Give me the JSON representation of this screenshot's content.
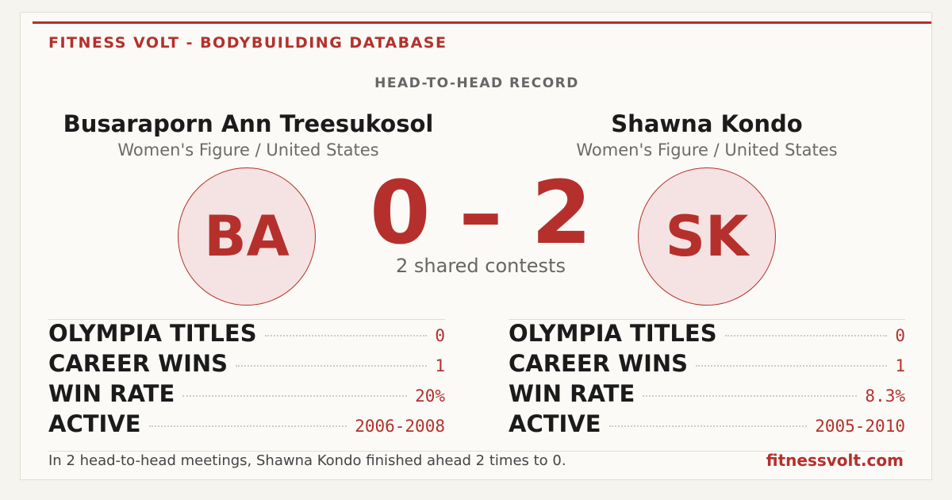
{
  "header": {
    "brand": "FITNESS VOLT - BODYBUILDING DATABASE",
    "subtitle": "HEAD-TO-HEAD RECORD"
  },
  "athletes": [
    {
      "name": "Busaraporn Ann Treesukosol",
      "division": "Women's Figure / United States",
      "initials": "BA",
      "stats": [
        {
          "label": "OLYMPIA TITLES",
          "value": "0"
        },
        {
          "label": "CAREER WINS",
          "value": "1"
        },
        {
          "label": "WIN RATE",
          "value": "20%"
        },
        {
          "label": "ACTIVE",
          "value": "2006-2008"
        }
      ]
    },
    {
      "name": "Shawna Kondo",
      "division": "Women's Figure / United States",
      "initials": "SK",
      "stats": [
        {
          "label": "OLYMPIA TITLES",
          "value": "0"
        },
        {
          "label": "CAREER WINS",
          "value": "1"
        },
        {
          "label": "WIN RATE",
          "value": "8.3%"
        },
        {
          "label": "ACTIVE",
          "value": "2005-2010"
        }
      ]
    }
  ],
  "score": {
    "left": "0",
    "separator": "–",
    "right": "2",
    "caption": "2 shared contests"
  },
  "footer": {
    "summary": "In 2 head-to-head meetings, Shawna Kondo finished ahead 2 times to 0.",
    "site": "fitnessvolt.com"
  }
}
